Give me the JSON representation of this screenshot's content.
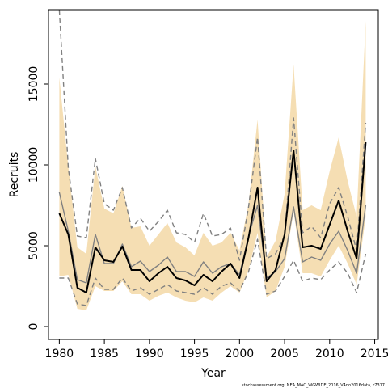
{
  "chart_data": {
    "type": "line",
    "title": "",
    "xlabel": "Year",
    "ylabel": "Recruits",
    "xlim": [
      1978.8,
      2015.4
    ],
    "ylim": [
      -800,
      19600
    ],
    "xticks": [
      1980,
      1985,
      1990,
      1995,
      2000,
      2005,
      2010,
      2015
    ],
    "yticks": [
      0,
      5000,
      10000,
      15000
    ],
    "grid": false,
    "legend": "none",
    "credit": "stockassessment.org, NEA_MAC_WGWIDE_2016_V4no2016data, r7317",
    "x": [
      1980,
      1981,
      1982,
      1983,
      1984,
      1985,
      1986,
      1987,
      1988,
      1989,
      1990,
      1991,
      1992,
      1993,
      1994,
      1995,
      1996,
      1997,
      1998,
      1999,
      2000,
      2001,
      2002,
      2003,
      2004,
      2005,
      2006,
      2007,
      2008,
      2009,
      2010,
      2011,
      2012,
      2013,
      2014
    ],
    "series": [
      {
        "values": [
          7000,
          5700,
          2400,
          2100,
          4900,
          4100,
          4000,
          4950,
          3500,
          3500,
          2800,
          3300,
          3700,
          3000,
          2850,
          2550,
          3200,
          2800,
          3400,
          3900,
          3000,
          5500,
          8600,
          2800,
          3500,
          5700,
          10900,
          4900,
          5000,
          4800,
          6300,
          7800,
          5900,
          4200,
          11400
        ],
        "color": "#000000",
        "dash": "",
        "width": 2
      },
      {
        "values": [
          8300,
          5900,
          2900,
          2700,
          5700,
          3900,
          3900,
          5100,
          3700,
          4050,
          3400,
          3800,
          4300,
          3400,
          3400,
          3100,
          4000,
          3300,
          3700,
          3900,
          3200,
          5600,
          7500,
          3000,
          3400,
          4200,
          7400,
          4000,
          4300,
          4100,
          5100,
          5900,
          4700,
          3300,
          7500
        ],
        "color": "#808080",
        "dash": "",
        "width": 1.4
      },
      {
        "values": [
          19600,
          9800,
          5600,
          5500,
          10400,
          7600,
          7200,
          8600,
          6100,
          6700,
          5900,
          6500,
          7200,
          5800,
          5700,
          5200,
          7000,
          5600,
          5700,
          6100,
          4100,
          7400,
          11700,
          4200,
          4500,
          5600,
          12900,
          5800,
          6200,
          5500,
          7600,
          8600,
          6800,
          4700,
          12600
        ],
        "color": "#808080",
        "dash": "6,4",
        "width": 1.4
      },
      {
        "values": [
          3000,
          3000,
          1400,
          1300,
          3000,
          2300,
          2300,
          3000,
          2200,
          2400,
          2000,
          2300,
          2600,
          2200,
          2100,
          2000,
          2400,
          2000,
          2500,
          2700,
          2200,
          3400,
          5400,
          2000,
          2200,
          3100,
          4100,
          2800,
          3000,
          2900,
          3500,
          4000,
          3300,
          2100,
          4500
        ],
        "color": "#808080",
        "dash": "6,4",
        "width": 1.4
      }
    ],
    "band": {
      "upper": [
        15400,
        9900,
        4900,
        4500,
        9900,
        7300,
        7000,
        8700,
        6100,
        6200,
        5000,
        5700,
        6400,
        5200,
        4900,
        4400,
        5800,
        5000,
        5200,
        5800,
        4700,
        7600,
        12800,
        4300,
        5300,
        8200,
        16200,
        7200,
        7500,
        7200,
        9600,
        11700,
        9000,
        6800,
        18900
      ],
      "lower": [
        3100,
        3200,
        1100,
        1000,
        2500,
        2200,
        2200,
        2800,
        2000,
        2000,
        1600,
        1900,
        2100,
        1800,
        1600,
        1500,
        1800,
        1600,
        2100,
        2500,
        2100,
        3500,
        5800,
        1800,
        2200,
        3700,
        7100,
        3300,
        3300,
        3100,
        4100,
        5000,
        3900,
        2600,
        6800
      ],
      "color": "#f5deb3"
    }
  }
}
